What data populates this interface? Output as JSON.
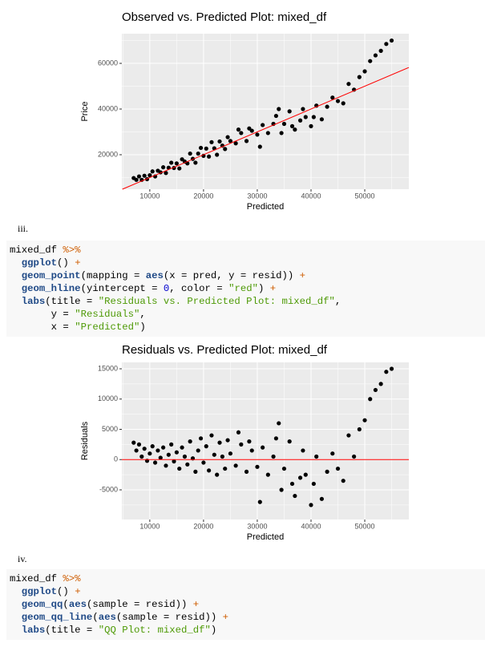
{
  "chart_data": [
    {
      "type": "scatter",
      "title": "Observed vs. Predicted Plot: mixed_df",
      "x_label": "Predicted",
      "y_label": "Price",
      "x": [
        7000,
        7500,
        8000,
        8500,
        9000,
        9500,
        10000,
        10500,
        11000,
        11500,
        12000,
        12500,
        13000,
        13500,
        14000,
        14500,
        15000,
        15500,
        16000,
        16500,
        17000,
        17500,
        18000,
        18500,
        19000,
        19500,
        20000,
        20500,
        21000,
        21500,
        22000,
        22500,
        23000,
        23500,
        24000,
        24500,
        25000,
        26000,
        27000,
        28000,
        29000,
        30000,
        30500,
        31000,
        32000,
        33000,
        34000,
        34500,
        35000,
        36000,
        36500,
        37000,
        38000,
        38500,
        39000,
        40000,
        40500,
        41000,
        42000,
        43000,
        44000,
        45000,
        46000,
        47000,
        48000,
        49000,
        50000,
        51000,
        52000,
        53000,
        54000,
        55000,
        26500,
        28500,
        33500
      ],
      "values": [
        9800,
        9000,
        10500,
        9000,
        10800,
        9300,
        11000,
        12700,
        10500,
        13000,
        12300,
        14500,
        12000,
        14300,
        16500,
        14200,
        16200,
        14000,
        18000,
        17000,
        16200,
        20500,
        18200,
        16500,
        20500,
        23000,
        19500,
        22700,
        19200,
        25500,
        22800,
        20000,
        25800,
        24000,
        22500,
        27700,
        26000,
        25000,
        29500,
        26000,
        30500,
        28800,
        23500,
        33000,
        29500,
        33500,
        40000,
        29500,
        33500,
        39000,
        32500,
        31000,
        35000,
        40000,
        36500,
        32500,
        36500,
        41500,
        35500,
        41000,
        45000,
        43500,
        42500,
        51000,
        48500,
        54000,
        56500,
        61000,
        63500,
        65500,
        68500,
        70000,
        31000,
        31500,
        37000
      ],
      "color": "#000000",
      "abline": {
        "slope": 1,
        "intercept": 0,
        "color": "#ff0000"
      },
      "xlim": [
        4800,
        58200
      ],
      "ylim": [
        4900,
        73000
      ],
      "xticks": [
        10000,
        20000,
        30000,
        40000,
        50000
      ],
      "yticks": [
        20000,
        40000,
        60000
      ],
      "grid": true
    },
    {
      "type": "scatter",
      "title": "Residuals vs. Predicted Plot: mixed_df",
      "x_label": "Predicted",
      "y_label": "Residuals",
      "x": [
        7000,
        7500,
        8000,
        8500,
        9000,
        9500,
        10000,
        10500,
        11000,
        11500,
        12000,
        12500,
        13000,
        13500,
        14000,
        14500,
        15000,
        15500,
        16000,
        16500,
        17000,
        17500,
        18000,
        18500,
        19000,
        19500,
        20000,
        20500,
        21000,
        21500,
        22000,
        22500,
        23000,
        23500,
        24000,
        24500,
        25000,
        26000,
        27000,
        28000,
        29000,
        30000,
        30500,
        31000,
        32000,
        33000,
        34000,
        34500,
        35000,
        36000,
        36500,
        37000,
        38000,
        38500,
        39000,
        40000,
        40500,
        41000,
        42000,
        43000,
        44000,
        45000,
        46000,
        47000,
        48000,
        49000,
        50000,
        51000,
        52000,
        53000,
        54000,
        55000,
        26500,
        28500,
        33500
      ],
      "values": [
        2800,
        1500,
        2500,
        500,
        1800,
        -200,
        1000,
        2200,
        -500,
        1500,
        300,
        2000,
        -1000,
        800,
        2500,
        -300,
        1200,
        -1500,
        2000,
        500,
        -800,
        3000,
        200,
        -2000,
        1500,
        3500,
        -500,
        2200,
        -1800,
        4000,
        800,
        -2500,
        2800,
        500,
        -1500,
        3200,
        1000,
        -1000,
        2500,
        -2000,
        1500,
        -1200,
        -7000,
        2000,
        -2500,
        500,
        6000,
        -5000,
        -1500,
        3000,
        -4000,
        -6000,
        -3000,
        1500,
        -2500,
        -7500,
        -4000,
        500,
        -6500,
        -2000,
        1000,
        -1500,
        -3500,
        4000,
        500,
        5000,
        6500,
        10000,
        11500,
        12500,
        14500,
        15000,
        4500,
        3000,
        3500
      ],
      "color": "#000000",
      "hline": {
        "value": 0,
        "color": "#ff0000"
      },
      "xlim": [
        4800,
        58200
      ],
      "ylim": [
        -9900,
        16060
      ],
      "xticks": [
        10000,
        20000,
        30000,
        40000,
        50000
      ],
      "yticks": [
        -5000,
        0,
        5000,
        10000,
        15000
      ],
      "grid": true
    }
  ],
  "document": {
    "items": [
      {
        "label": "iii.",
        "code": [
          [
            {
              "text": "mixed_df ",
              "color": "#000000"
            },
            {
              "text": "%>%",
              "color": "#ce5c00"
            }
          ],
          [
            {
              "text": "  ggplot",
              "color": "#204a87"
            },
            {
              "text": "() ",
              "color": "#000000"
            },
            {
              "text": "+",
              "color": "#ce5c00"
            }
          ],
          [
            {
              "text": "  geom_point",
              "color": "#204a87"
            },
            {
              "text": "(mapping = ",
              "color": "#000000"
            },
            {
              "text": "aes",
              "color": "#204a87"
            },
            {
              "text": "(x = pred, y = resid)) ",
              "color": "#000000"
            },
            {
              "text": "+",
              "color": "#ce5c00"
            }
          ],
          [
            {
              "text": "  geom_hline",
              "color": "#204a87"
            },
            {
              "text": "(yintercept = ",
              "color": "#000000"
            },
            {
              "text": "0",
              "color": "#0000cf"
            },
            {
              "text": ", color = ",
              "color": "#000000"
            },
            {
              "text": "\"red\"",
              "color": "#4e9a06"
            },
            {
              "text": ") ",
              "color": "#000000"
            },
            {
              "text": "+",
              "color": "#ce5c00"
            }
          ],
          [
            {
              "text": "  labs",
              "color": "#204a87"
            },
            {
              "text": "(title = ",
              "color": "#000000"
            },
            {
              "text": "\"Residuals vs. Predicted Plot: mixed_df\"",
              "color": "#4e9a06"
            },
            {
              "text": ",",
              "color": "#000000"
            }
          ],
          [
            {
              "text": "       y = ",
              "color": "#000000"
            },
            {
              "text": "\"Residuals\"",
              "color": "#4e9a06"
            },
            {
              "text": ",",
              "color": "#000000"
            }
          ],
          [
            {
              "text": "       x = ",
              "color": "#000000"
            },
            {
              "text": "\"Predicted\"",
              "color": "#4e9a06"
            },
            {
              "text": ")",
              "color": "#000000"
            }
          ]
        ]
      },
      {
        "label": "iv.",
        "code": [
          [
            {
              "text": "mixed_df ",
              "color": "#000000"
            },
            {
              "text": "%>%",
              "color": "#ce5c00"
            }
          ],
          [
            {
              "text": "  ggplot",
              "color": "#204a87"
            },
            {
              "text": "() ",
              "color": "#000000"
            },
            {
              "text": "+",
              "color": "#ce5c00"
            }
          ],
          [
            {
              "text": "  geom_qq",
              "color": "#204a87"
            },
            {
              "text": "(",
              "color": "#000000"
            },
            {
              "text": "aes",
              "color": "#204a87"
            },
            {
              "text": "(sample = resid)) ",
              "color": "#000000"
            },
            {
              "text": "+",
              "color": "#ce5c00"
            }
          ],
          [
            {
              "text": "  geom_qq_line",
              "color": "#204a87"
            },
            {
              "text": "(",
              "color": "#000000"
            },
            {
              "text": "aes",
              "color": "#204a87"
            },
            {
              "text": "(sample = resid)) ",
              "color": "#000000"
            },
            {
              "text": "+",
              "color": "#ce5c00"
            }
          ],
          [
            {
              "text": "  labs",
              "color": "#204a87"
            },
            {
              "text": "(title = ",
              "color": "#000000"
            },
            {
              "text": "\"QQ Plot: mixed_df\"",
              "color": "#4e9a06"
            },
            {
              "text": ")",
              "color": "#000000"
            }
          ]
        ]
      }
    ]
  }
}
